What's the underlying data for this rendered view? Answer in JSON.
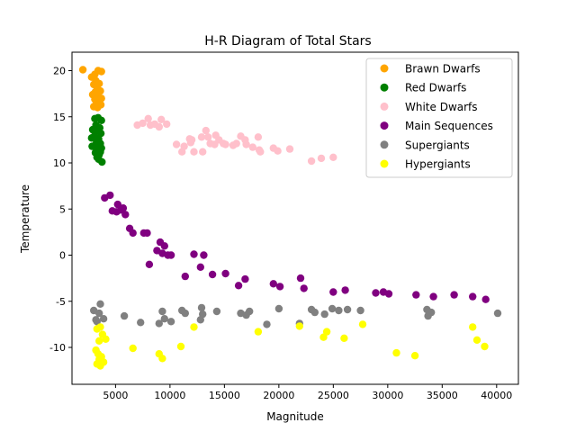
{
  "chart_data": {
    "type": "scatter",
    "title": "H-R Diagram of Total Stars",
    "xlabel": "Magnitude",
    "ylabel": "Temperature",
    "xlim": [
      1000,
      42000
    ],
    "ylim": [
      -14,
      22
    ],
    "xticks": [
      5000,
      10000,
      15000,
      20000,
      25000,
      30000,
      35000,
      40000
    ],
    "yticks": [
      -10,
      -5,
      0,
      5,
      10,
      15,
      20
    ],
    "legend_position": "top-right",
    "series": [
      {
        "name": "Brawn Dwarfs",
        "color": "#ffa500",
        "points": [
          [
            2000,
            20.1
          ],
          [
            3100,
            19.6
          ],
          [
            3400,
            20.0
          ],
          [
            3700,
            19.9
          ],
          [
            2800,
            19.3
          ],
          [
            3200,
            18.9
          ],
          [
            3000,
            18.5
          ],
          [
            3500,
            18.6
          ],
          [
            3300,
            18.2
          ],
          [
            3600,
            17.8
          ],
          [
            2900,
            17.4
          ],
          [
            3400,
            17.2
          ],
          [
            3100,
            16.9
          ],
          [
            3700,
            17.0
          ],
          [
            3250,
            16.5
          ],
          [
            3550,
            16.4
          ],
          [
            3000,
            16.1
          ],
          [
            3350,
            16.0
          ],
          [
            3650,
            16.3
          ],
          [
            3150,
            17.7
          ]
        ]
      },
      {
        "name": "Red Dwarfs",
        "color": "#008000",
        "points": [
          [
            3100,
            14.8
          ],
          [
            3400,
            14.9
          ],
          [
            3700,
            14.6
          ],
          [
            3200,
            14.1
          ],
          [
            3550,
            13.8
          ],
          [
            2900,
            13.6
          ],
          [
            3300,
            13.5
          ],
          [
            3650,
            13.2
          ],
          [
            3050,
            12.9
          ],
          [
            2800,
            12.7
          ],
          [
            3450,
            12.6
          ],
          [
            3250,
            12.2
          ],
          [
            3600,
            12.1
          ],
          [
            2850,
            11.8
          ],
          [
            3350,
            11.5
          ],
          [
            3700,
            11.6
          ],
          [
            3150,
            11.1
          ],
          [
            3500,
            10.9
          ],
          [
            3300,
            10.6
          ],
          [
            3750,
            10.1
          ],
          [
            3450,
            10.4
          ],
          [
            3600,
            11.2
          ]
        ]
      },
      {
        "name": "White Dwarfs",
        "color": "#ffc0cb",
        "points": [
          [
            7000,
            14.1
          ],
          [
            7500,
            14.3
          ],
          [
            8000,
            14.8
          ],
          [
            8200,
            14.1
          ],
          [
            8600,
            14.2
          ],
          [
            9200,
            14.7
          ],
          [
            9000,
            13.9
          ],
          [
            9700,
            14.2
          ],
          [
            10600,
            12.0
          ],
          [
            11100,
            11.2
          ],
          [
            11800,
            12.6
          ],
          [
            11900,
            12.2
          ],
          [
            12200,
            11.2
          ],
          [
            12900,
            12.8
          ],
          [
            13000,
            11.2
          ],
          [
            13300,
            13.5
          ],
          [
            13500,
            12.8
          ],
          [
            13700,
            12.1
          ],
          [
            14100,
            12.0
          ],
          [
            14500,
            12.5
          ],
          [
            14900,
            12.1
          ],
          [
            15100,
            12.0
          ],
          [
            15800,
            11.9
          ],
          [
            16500,
            12.9
          ],
          [
            16900,
            12.5
          ],
          [
            17600,
            11.7
          ],
          [
            18100,
            12.8
          ],
          [
            18300,
            11.2
          ],
          [
            19500,
            11.6
          ],
          [
            19900,
            11.3
          ],
          [
            21000,
            11.5
          ],
          [
            23000,
            10.2
          ],
          [
            23900,
            10.5
          ],
          [
            25000,
            10.6
          ],
          [
            12000,
            12.5
          ],
          [
            14200,
            13.0
          ],
          [
            16100,
            12.1
          ],
          [
            17000,
            12.0
          ],
          [
            18200,
            11.4
          ],
          [
            11300,
            11.8
          ]
        ]
      },
      {
        "name": "Main Sequences",
        "color": "#800080",
        "points": [
          [
            4000,
            6.2
          ],
          [
            4500,
            6.5
          ],
          [
            4700,
            4.8
          ],
          [
            5100,
            4.7
          ],
          [
            5200,
            5.5
          ],
          [
            5500,
            4.9
          ],
          [
            5900,
            4.4
          ],
          [
            5700,
            5.1
          ],
          [
            6300,
            2.9
          ],
          [
            6600,
            2.4
          ],
          [
            7600,
            2.4
          ],
          [
            7900,
            2.4
          ],
          [
            8100,
            -1.0
          ],
          [
            8800,
            0.5
          ],
          [
            9100,
            1.4
          ],
          [
            9300,
            0.2
          ],
          [
            9500,
            1.0
          ],
          [
            10100,
            0.0
          ],
          [
            9800,
            0.0
          ],
          [
            11400,
            -2.3
          ],
          [
            12200,
            0.1
          ],
          [
            12800,
            -1.3
          ],
          [
            13100,
            0.0
          ],
          [
            13900,
            -2.1
          ],
          [
            15100,
            -2.0
          ],
          [
            16300,
            -3.3
          ],
          [
            16900,
            -2.6
          ],
          [
            19500,
            -3.1
          ],
          [
            20100,
            -3.4
          ],
          [
            22000,
            -2.5
          ],
          [
            22300,
            -3.6
          ],
          [
            25000,
            -4.0
          ],
          [
            26100,
            -3.8
          ],
          [
            28900,
            -4.1
          ],
          [
            29600,
            -4.0
          ],
          [
            30100,
            -4.2
          ],
          [
            32600,
            -4.3
          ],
          [
            34200,
            -4.5
          ],
          [
            36100,
            -4.3
          ],
          [
            37800,
            -4.5
          ],
          [
            39000,
            -4.8
          ]
        ]
      },
      {
        "name": "Supergiants",
        "color": "#808080",
        "points": [
          [
            3000,
            -6.0
          ],
          [
            3300,
            -7.2
          ],
          [
            3600,
            -5.3
          ],
          [
            3900,
            -6.9
          ],
          [
            3500,
            -6.3
          ],
          [
            3200,
            -7.0
          ],
          [
            5800,
            -6.6
          ],
          [
            7300,
            -7.3
          ],
          [
            9000,
            -7.4
          ],
          [
            9300,
            -6.1
          ],
          [
            9500,
            -6.9
          ],
          [
            10100,
            -7.2
          ],
          [
            11100,
            -6.0
          ],
          [
            11400,
            -6.3
          ],
          [
            12900,
            -5.7
          ],
          [
            13000,
            -6.4
          ],
          [
            12800,
            -7.0
          ],
          [
            14300,
            -6.1
          ],
          [
            16500,
            -6.3
          ],
          [
            17000,
            -6.5
          ],
          [
            17300,
            -6.1
          ],
          [
            18900,
            -7.5
          ],
          [
            20000,
            -5.8
          ],
          [
            21900,
            -7.4
          ],
          [
            23000,
            -5.9
          ],
          [
            23300,
            -6.2
          ],
          [
            24200,
            -6.4
          ],
          [
            24900,
            -5.8
          ],
          [
            25500,
            -6.0
          ],
          [
            26300,
            -5.9
          ],
          [
            27500,
            -6.0
          ],
          [
            33600,
            -5.9
          ],
          [
            33700,
            -6.6
          ],
          [
            34000,
            -6.2
          ],
          [
            40100,
            -6.3
          ]
        ]
      },
      {
        "name": "Hypergiants",
        "color": "#ffff00",
        "points": [
          [
            3300,
            -8.0
          ],
          [
            3500,
            -9.3
          ],
          [
            3600,
            -7.8
          ],
          [
            3800,
            -8.6
          ],
          [
            3200,
            -10.3
          ],
          [
            3400,
            -10.7
          ],
          [
            3700,
            -11.0
          ],
          [
            3500,
            -11.3
          ],
          [
            3900,
            -11.6
          ],
          [
            3600,
            -12.0
          ],
          [
            4100,
            -9.1
          ],
          [
            3300,
            -11.8
          ],
          [
            6600,
            -10.1
          ],
          [
            9000,
            -10.7
          ],
          [
            9300,
            -11.2
          ],
          [
            11000,
            -9.9
          ],
          [
            12200,
            -7.8
          ],
          [
            18100,
            -8.3
          ],
          [
            21900,
            -7.7
          ],
          [
            24100,
            -8.9
          ],
          [
            24400,
            -8.3
          ],
          [
            26000,
            -9.0
          ],
          [
            27700,
            -7.5
          ],
          [
            30800,
            -10.6
          ],
          [
            32500,
            -10.9
          ],
          [
            37800,
            -7.8
          ],
          [
            38200,
            -9.2
          ],
          [
            38900,
            -9.9
          ]
        ]
      }
    ]
  }
}
